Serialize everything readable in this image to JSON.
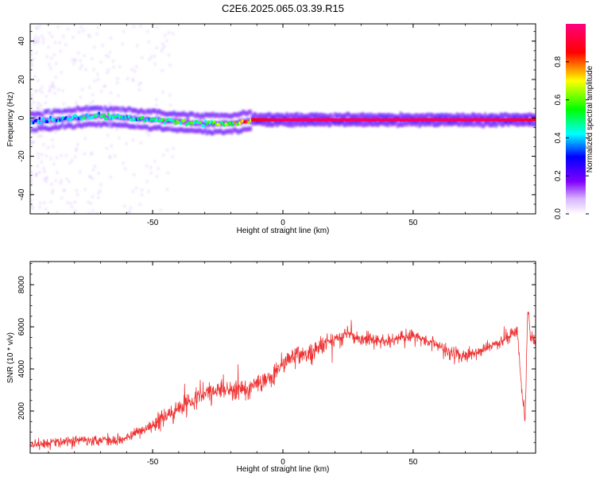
{
  "figure": {
    "title": "C2E6.2025.065.03.39.R15"
  },
  "chart_data": [
    {
      "type": "heatmap",
      "title": "C2E6.2025.065.03.39.R15",
      "xlabel": "Height of straight line (km)",
      "ylabel": "Frequency (Hz)",
      "xlim": [
        -97,
        97
      ],
      "ylim": [
        -50,
        49
      ],
      "x_ticks": [
        -50,
        0,
        50
      ],
      "y_ticks": [
        -40,
        -20,
        0,
        20,
        40
      ],
      "grid": false,
      "colorbar": {
        "label": "Normalized spectral amplitude",
        "range": [
          0,
          1
        ],
        "ticks": [
          0.0,
          0.2,
          0.4,
          0.6,
          0.8
        ],
        "colors": [
          "#ffffff",
          "#8000ff",
          "#0000ff",
          "#00ffff",
          "#00ff00",
          "#ffff00",
          "#ff0000",
          "#ff0080"
        ]
      },
      "ridge": {
        "x": [
          -95,
          -80,
          -70,
          -60,
          -50,
          -40,
          -30,
          -20,
          -15,
          -12,
          0,
          20,
          50,
          80,
          95
        ],
        "frequency": [
          -2,
          0,
          1,
          0,
          -1,
          -2,
          -3,
          -3,
          -2,
          -1,
          -1,
          -1,
          -1,
          -1,
          -1
        ],
        "peak_amplitude": [
          0.35,
          0.4,
          0.45,
          0.4,
          0.45,
          0.5,
          0.55,
          0.6,
          0.7,
          0.85,
          0.95,
          0.95,
          0.95,
          0.95,
          0.9
        ]
      }
    },
    {
      "type": "line",
      "xlabel": "Height of straight line (km)",
      "ylabel": "SNR (10 * v/v)",
      "xlim": [
        -97,
        97
      ],
      "ylim": [
        0,
        9100
      ],
      "x_ticks": [
        -50,
        0,
        50
      ],
      "y_ticks": [
        2000,
        4000,
        6000,
        8000
      ],
      "grid": false,
      "color": "#ee3333",
      "series": [
        {
          "x": [
            -97,
            -90,
            -80,
            -70,
            -65,
            -60,
            -55,
            -50,
            -45,
            -40,
            -35,
            -30,
            -25,
            -20,
            -15,
            -10,
            -5,
            0,
            5,
            10,
            15,
            20,
            25,
            30,
            40,
            50,
            60,
            65,
            70,
            75,
            80,
            85,
            88,
            90,
            92,
            93,
            94,
            95,
            97
          ],
          "y": [
            400,
            500,
            600,
            650,
            600,
            750,
            1000,
            1300,
            1700,
            2200,
            2500,
            2800,
            3000,
            3000,
            3000,
            3300,
            3600,
            4200,
            4700,
            4600,
            5100,
            5400,
            5700,
            5400,
            5300,
            5600,
            5100,
            4800,
            4600,
            4800,
            5100,
            5400,
            5700,
            5800,
            2500,
            1500,
            7000,
            5600,
            5300
          ]
        }
      ]
    }
  ]
}
